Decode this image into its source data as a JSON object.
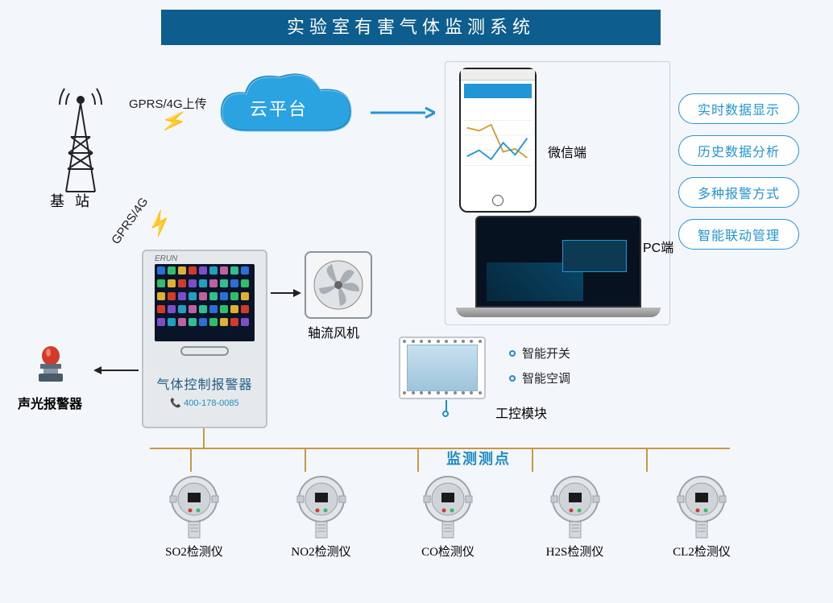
{
  "title": "实验室有害气体监测系统",
  "colors": {
    "title_bg": "#0d5e8f",
    "title_fg": "#ffffff",
    "accent_blue": "#2196d6",
    "cloud_fill": "#2aa3e0",
    "cloud_outline": "#1f8bc8",
    "bus_line": "#c79a42",
    "lightning": "#f5c400",
    "alarm_red": "#d23a2a",
    "background": "#f3f6fa",
    "controller_panel": "#0a1428",
    "monitor_label": "#1f8bc8"
  },
  "tower": {
    "label": "基 站"
  },
  "gprs": {
    "upload_label": "GPRS/4G上传",
    "link_label": "GPRS/4G"
  },
  "cloud": {
    "label": "云平台"
  },
  "wechat": {
    "label": "微信端"
  },
  "pc": {
    "label": "PC端"
  },
  "fan": {
    "label": "轴流风机"
  },
  "alarm": {
    "label": "声光报警器"
  },
  "module": {
    "label": "工控模块",
    "bullets": [
      "智能开关",
      "智能空调"
    ]
  },
  "controller": {
    "brand": "ERUN",
    "label": "气体控制报警器",
    "phone": "📞 400-178-0085",
    "screen_icon_colors": [
      "#2a6fd6",
      "#2fbf6a",
      "#e0b030",
      "#d23a2a",
      "#7a4fc8",
      "#1fa0c0",
      "#c060a0",
      "#30c090"
    ]
  },
  "features": {
    "items": [
      "实时数据显示",
      "历史数据分析",
      "多种报警方式",
      "智能联动管理"
    ]
  },
  "monitor_points_label": "监测测点",
  "sensors": [
    {
      "label": "SO2检测仪"
    },
    {
      "label": "NO2检测仪"
    },
    {
      "label": "CO检测仪"
    },
    {
      "label": "H2S检测仪"
    },
    {
      "label": "CL2检测仪"
    }
  ],
  "layout": {
    "sensor_drop_x": [
      236,
      378,
      518,
      660,
      802
    ]
  }
}
